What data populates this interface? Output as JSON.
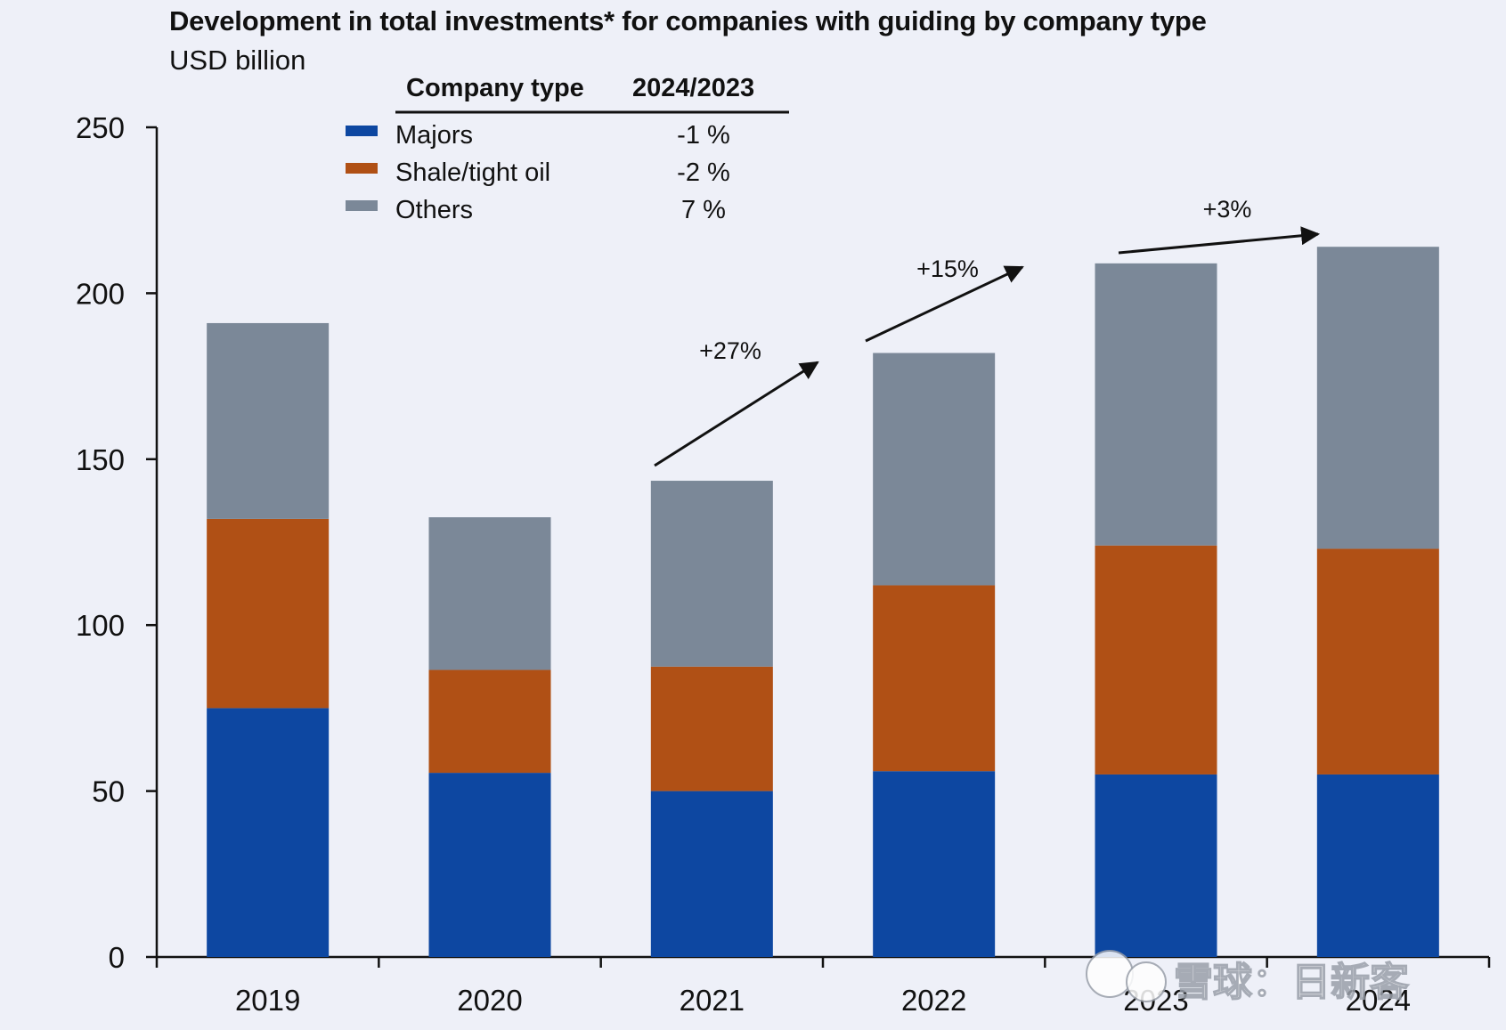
{
  "chart_data": {
    "type": "bar",
    "stacked": true,
    "title": "Development in total investments* for companies with guiding by company type",
    "subtitle": "USD billion",
    "categories": [
      "2019",
      "2020",
      "2021",
      "2022",
      "2023",
      "2024"
    ],
    "series": [
      {
        "name": "Majors",
        "color": "#0d47a1",
        "values": [
          75,
          55.5,
          50,
          56,
          55,
          55
        ]
      },
      {
        "name": "Shale/tight oil",
        "color": "#b05015",
        "values": [
          57,
          31,
          37.5,
          56,
          69,
          68
        ]
      },
      {
        "name": "Others",
        "color": "#7b8898",
        "values": [
          59,
          46,
          56,
          70,
          85,
          91
        ]
      }
    ],
    "ylim": [
      0,
      250
    ],
    "yticks": [
      0,
      50,
      100,
      150,
      200,
      250
    ],
    "grid": false,
    "legend": {
      "placement": "top-left",
      "headers": [
        "Company type",
        "2024/2023"
      ],
      "changes": [
        "-1 %",
        "-2 %",
        "7 %"
      ]
    },
    "annotations": [
      {
        "text": "+27%",
        "from": "2021",
        "to": "2022"
      },
      {
        "text": "+15%",
        "from": "2022",
        "to": "2023"
      },
      {
        "text": "+3%",
        "from": "2023",
        "to": "2024"
      }
    ]
  },
  "watermark": "雪球：日新客"
}
